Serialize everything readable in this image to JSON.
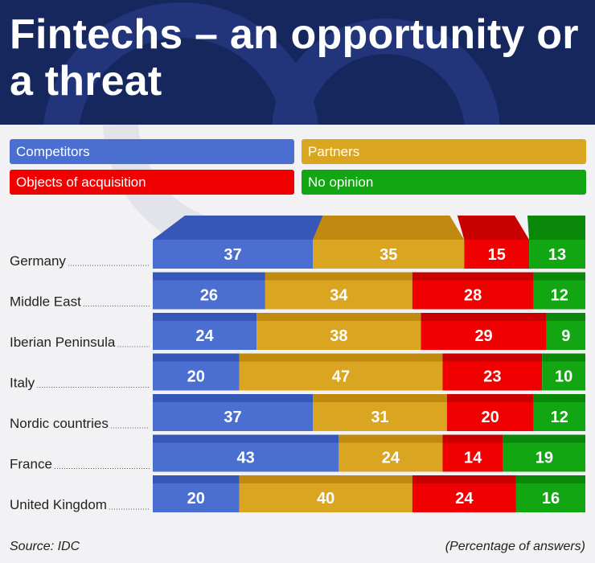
{
  "header": {
    "title": "Fintechs – an opportunity or a threat"
  },
  "legend": [
    {
      "name": "Competitors",
      "color": "#4a6fd0"
    },
    {
      "name": "Partners",
      "color": "#daa520"
    },
    {
      "name": "Objects of acquisition",
      "color": "#f00000"
    },
    {
      "name": "No opinion",
      "color": "#12a612"
    }
  ],
  "chart_data": {
    "type": "bar",
    "stacked": true,
    "orientation": "horizontal",
    "categories": [
      "Germany",
      "Middle East",
      "Iberian Peninsula",
      "Italy",
      "Nordic countries",
      "France",
      "United Kingdom"
    ],
    "series": [
      {
        "name": "Competitors",
        "values": [
          37,
          26,
          24,
          20,
          37,
          43,
          20
        ],
        "color": "#4a6fd0",
        "top_color": "#3656b8"
      },
      {
        "name": "Partners",
        "values": [
          35,
          34,
          38,
          47,
          31,
          24,
          40
        ],
        "color": "#daa520",
        "top_color": "#c08a10"
      },
      {
        "name": "Objects of acquisition",
        "values": [
          15,
          28,
          29,
          23,
          20,
          14,
          24
        ],
        "color": "#f00000",
        "top_color": "#c80000"
      },
      {
        "name": "No opinion",
        "values": [
          13,
          12,
          9,
          10,
          12,
          19,
          16
        ],
        "color": "#12a612",
        "top_color": "#0a880a"
      }
    ],
    "unit": "Percentage of answers",
    "xlim": [
      0,
      100
    ],
    "data_labels": true
  },
  "footer": {
    "source": "Source: IDC",
    "unit_note": "(Percentage of answers)"
  }
}
